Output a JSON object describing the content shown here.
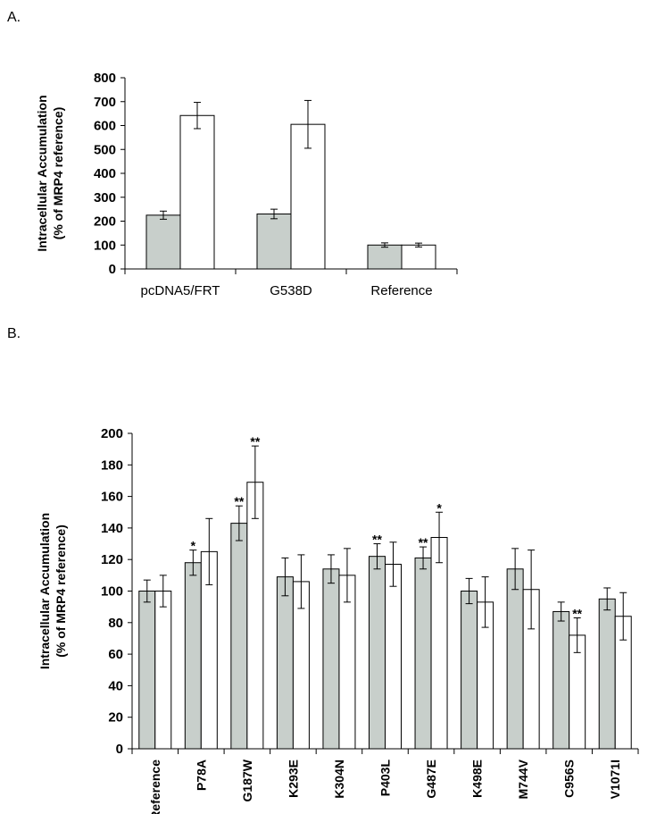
{
  "colors": {
    "filled_bar": "#C8CFCB",
    "open_bar": "#FFFFFF",
    "stroke": "#000000"
  },
  "chart_data": [
    {
      "type": "bar",
      "panel": "A.",
      "ylabel": [
        "Intracellular Accumulation",
        "(% of MRP4 reference)"
      ],
      "ylim": [
        0,
        800
      ],
      "yticks": [
        0,
        100,
        200,
        300,
        400,
        500,
        600,
        700,
        800
      ],
      "categories": [
        "pcDNA5/FRT",
        "G538D",
        "Reference"
      ],
      "series": [
        {
          "name": "filled",
          "values": [
            225,
            230,
            100
          ],
          "errors": [
            17,
            20,
            9
          ],
          "sig": [
            "",
            "",
            ""
          ]
        },
        {
          "name": "open",
          "values": [
            642,
            605,
            100
          ],
          "errors": [
            55,
            100,
            8
          ],
          "sig": [
            "",
            "",
            ""
          ]
        }
      ]
    },
    {
      "type": "bar",
      "panel": "B.",
      "ylabel": [
        "Intracellular Accumulation",
        "(% of MRP4 reference)"
      ],
      "ylim": [
        0,
        200
      ],
      "yticks": [
        0,
        20,
        40,
        60,
        80,
        100,
        120,
        140,
        160,
        180,
        200
      ],
      "categories": [
        "Reference",
        "P78A",
        "G187W",
        "K293E",
        "K304N",
        "P403L",
        "G487E",
        "K498E",
        "M744V",
        "C956S",
        "V1071I"
      ],
      "series": [
        {
          "name": "filled",
          "values": [
            100,
            118,
            143,
            109,
            114,
            122,
            121,
            100,
            114,
            87,
            95
          ],
          "errors": [
            7,
            8,
            11,
            12,
            9,
            8,
            7,
            8,
            13,
            6,
            7
          ],
          "sig": [
            "",
            "*",
            "**",
            "",
            "",
            "**",
            "**",
            "",
            "",
            "",
            ""
          ]
        },
        {
          "name": "open",
          "values": [
            100,
            125,
            169,
            106,
            110,
            117,
            134,
            93,
            101,
            72,
            84
          ],
          "errors": [
            10,
            21,
            23,
            17,
            17,
            14,
            16,
            16,
            25,
            11,
            15
          ],
          "sig": [
            "",
            "",
            "**",
            "",
            "",
            "",
            "*",
            "",
            "",
            "**",
            ""
          ]
        }
      ]
    }
  ]
}
